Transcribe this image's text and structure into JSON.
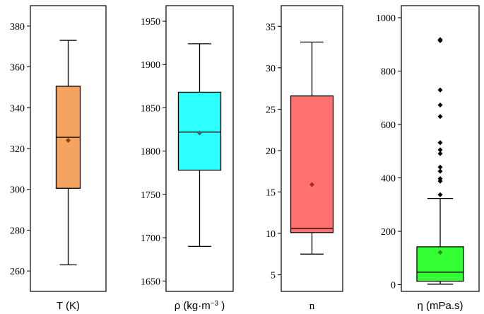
{
  "chart_data": [
    {
      "type": "box",
      "xlabel": "T (K)",
      "ylim": [
        250,
        390
      ],
      "yticks": [
        260,
        280,
        300,
        320,
        340,
        360,
        380
      ],
      "box": {
        "whisker_low": 263,
        "q1": 300.5,
        "median": 325.5,
        "q3": 350.5,
        "whisker_high": 373,
        "mean": 324
      },
      "outliers": [],
      "box_color": "#F4A460",
      "mean_color": "#8B4513"
    },
    {
      "type": "box",
      "xlabel": "ρ (kg·m",
      "xlabel_sup": "−3",
      "xlabel_end": " )",
      "ylim": [
        1638,
        1968
      ],
      "yticks": [
        1650,
        1700,
        1750,
        1800,
        1850,
        1900,
        1950
      ],
      "box": {
        "whisker_low": 1690,
        "q1": 1778,
        "median": 1822,
        "q3": 1868,
        "whisker_high": 1924,
        "mean": 1821
      },
      "outliers": [],
      "box_color": "#2EFFFF",
      "mean_color": "#2E6B6B"
    },
    {
      "type": "box",
      "xlabel": "n",
      "ylim": [
        3,
        37.5
      ],
      "yticks": [
        5,
        10,
        15,
        20,
        25,
        30,
        35
      ],
      "box": {
        "whisker_low": 7.5,
        "q1": 10.1,
        "median": 10.6,
        "q3": 26.6,
        "whisker_high": 33.1,
        "mean": 15.9
      },
      "outliers": [],
      "box_color": "#FF7070",
      "mean_color": "#B22222"
    },
    {
      "type": "box",
      "xlabel": "η (mPa.s)",
      "ylim": [
        -25,
        1045
      ],
      "yticks": [
        0,
        200,
        400,
        600,
        800,
        1000
      ],
      "box": {
        "whisker_low": 2,
        "q1": 13,
        "median": 47,
        "q3": 142,
        "whisker_high": 323,
        "mean": 121
      },
      "outliers": [
        337,
        388,
        397,
        425,
        440,
        491,
        505,
        532,
        630,
        673,
        729,
        914,
        918
      ],
      "box_color": "#33FF33",
      "mean_color": "#2E8B2E"
    }
  ]
}
